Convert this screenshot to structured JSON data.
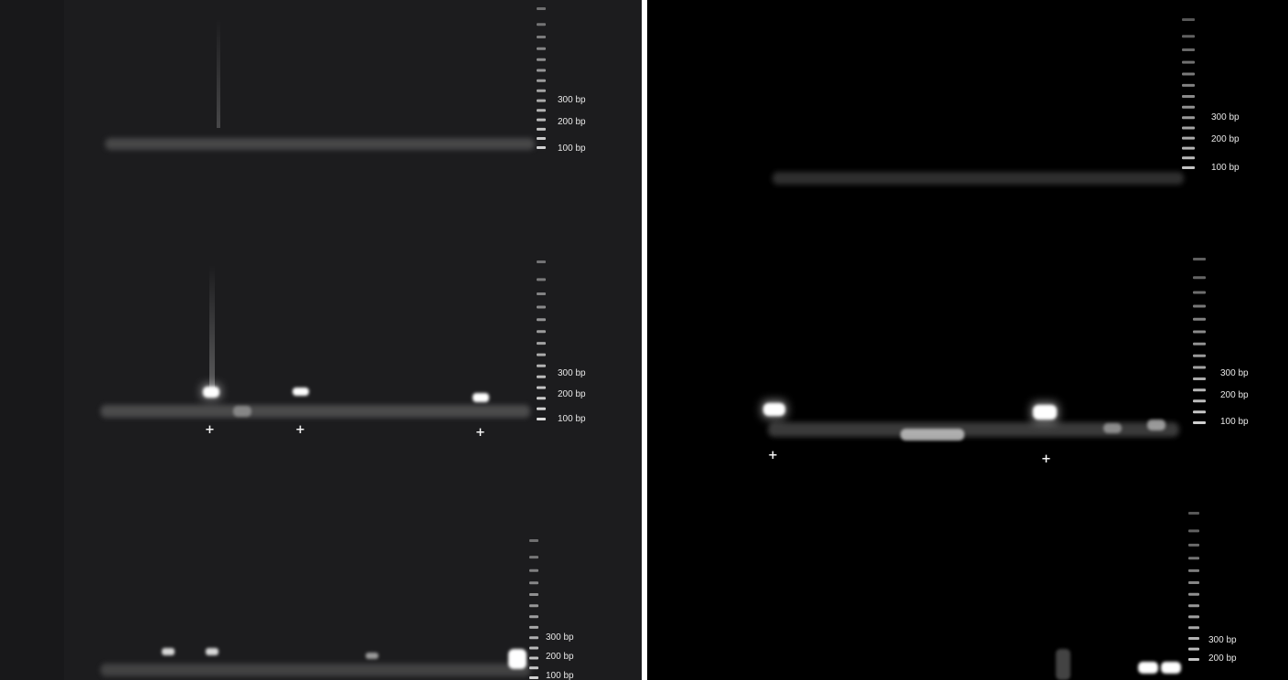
{
  "panels": [
    {
      "id": "left",
      "background": "#1c1c1e",
      "gels": [
        {
          "ladder_labels": [
            "300 bp",
            "200 bp",
            "100 bp"
          ],
          "positive_marks": []
        },
        {
          "ladder_labels": [
            "300 bp",
            "200 bp",
            "100 bp"
          ],
          "positive_marks": [
            "+",
            "+",
            "+"
          ]
        },
        {
          "ladder_labels": [
            "300 bp",
            "200 bp",
            "100 bp"
          ],
          "positive_marks": []
        }
      ]
    },
    {
      "id": "right",
      "background": "#000000",
      "gels": [
        {
          "ladder_labels": [
            "300 bp",
            "200 bp",
            "100 bp"
          ],
          "positive_marks": []
        },
        {
          "ladder_labels": [
            "300 bp",
            "200 bp",
            "100 bp"
          ],
          "positive_marks": [
            "+",
            "+"
          ]
        },
        {
          "ladder_labels": [
            "300 bp",
            "200 bp"
          ],
          "positive_marks": []
        }
      ]
    }
  ],
  "colors": {
    "divider": "#ffffff",
    "band": "#ffffff",
    "label": "#e8e8e8"
  }
}
